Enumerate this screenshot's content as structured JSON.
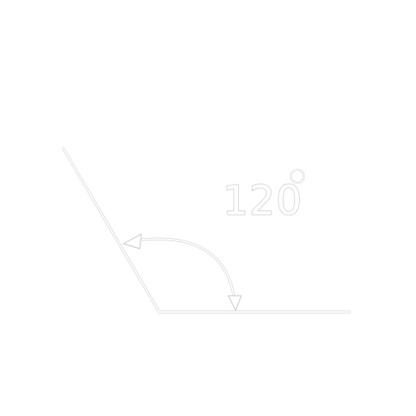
{
  "diagram": {
    "angle_label": "120",
    "angle_degrees": 120,
    "line_color": "#ffffff",
    "outline_color": "#d4d4d4"
  }
}
